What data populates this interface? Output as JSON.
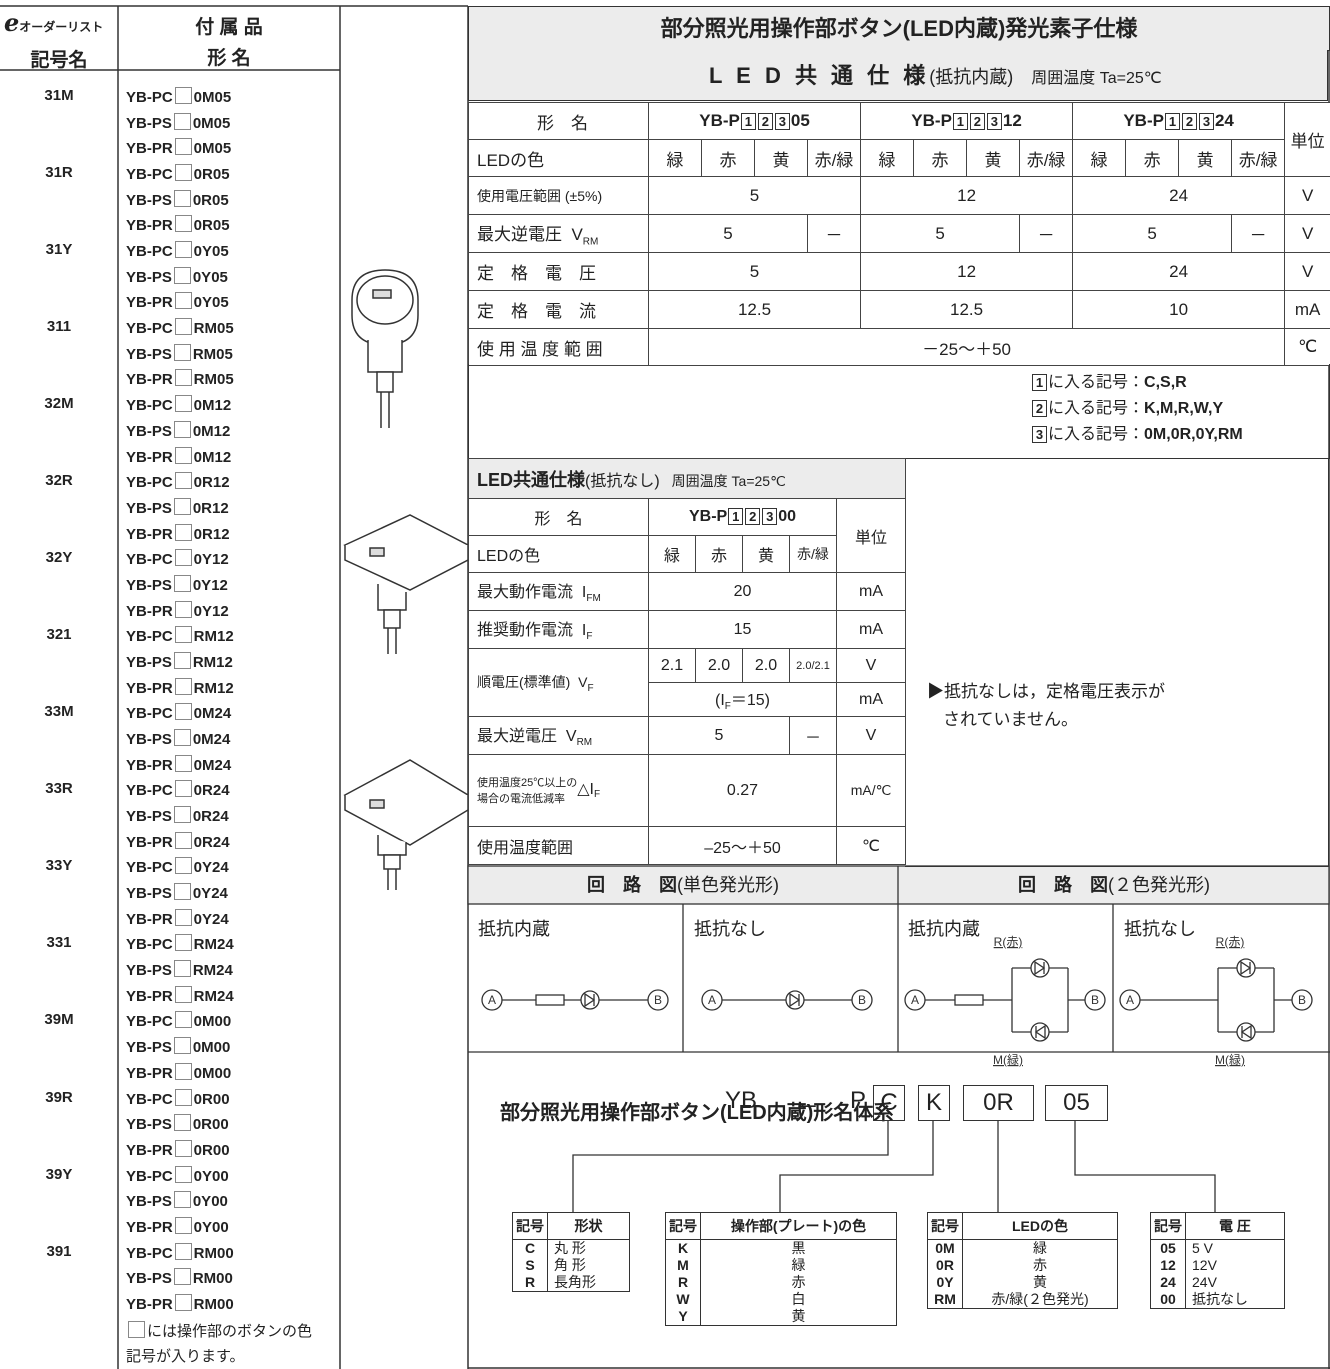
{
  "order_list": {
    "header": {
      "logo": "e",
      "code_title": "オーダーリスト",
      "code_name": "記号名",
      "accessory": "付 属 品",
      "form_name": "形 名"
    },
    "groups": [
      {
        "code": "31M",
        "forms": [
          {
            "prefix": "YB-PC",
            "suffix": "0M05"
          },
          {
            "prefix": "YB-PS",
            "suffix": "0M05"
          },
          {
            "prefix": "YB-PR",
            "suffix": "0M05"
          }
        ]
      },
      {
        "code": "31R",
        "forms": [
          {
            "prefix": "YB-PC",
            "suffix": "0R05"
          },
          {
            "prefix": "YB-PS",
            "suffix": "0R05"
          },
          {
            "prefix": "YB-PR",
            "suffix": "0R05"
          }
        ]
      },
      {
        "code": "31Y",
        "forms": [
          {
            "prefix": "YB-PC",
            "suffix": "0Y05"
          },
          {
            "prefix": "YB-PS",
            "suffix": "0Y05"
          },
          {
            "prefix": "YB-PR",
            "suffix": "0Y05"
          }
        ]
      },
      {
        "code": "311",
        "forms": [
          {
            "prefix": "YB-PC",
            "suffix": "RM05"
          },
          {
            "prefix": "YB-PS",
            "suffix": "RM05"
          },
          {
            "prefix": "YB-PR",
            "suffix": "RM05"
          }
        ]
      },
      {
        "code": "32M",
        "forms": [
          {
            "prefix": "YB-PC",
            "suffix": "0M12"
          },
          {
            "prefix": "YB-PS",
            "suffix": "0M12"
          },
          {
            "prefix": "YB-PR",
            "suffix": "0M12"
          }
        ]
      },
      {
        "code": "32R",
        "forms": [
          {
            "prefix": "YB-PC",
            "suffix": "0R12"
          },
          {
            "prefix": "YB-PS",
            "suffix": "0R12"
          },
          {
            "prefix": "YB-PR",
            "suffix": "0R12"
          }
        ]
      },
      {
        "code": "32Y",
        "forms": [
          {
            "prefix": "YB-PC",
            "suffix": "0Y12"
          },
          {
            "prefix": "YB-PS",
            "suffix": "0Y12"
          },
          {
            "prefix": "YB-PR",
            "suffix": "0Y12"
          }
        ]
      },
      {
        "code": "321",
        "forms": [
          {
            "prefix": "YB-PC",
            "suffix": "RM12"
          },
          {
            "prefix": "YB-PS",
            "suffix": "RM12"
          },
          {
            "prefix": "YB-PR",
            "suffix": "RM12"
          }
        ]
      },
      {
        "code": "33M",
        "forms": [
          {
            "prefix": "YB-PC",
            "suffix": "0M24"
          },
          {
            "prefix": "YB-PS",
            "suffix": "0M24"
          },
          {
            "prefix": "YB-PR",
            "suffix": "0M24"
          }
        ]
      },
      {
        "code": "33R",
        "forms": [
          {
            "prefix": "YB-PC",
            "suffix": "0R24"
          },
          {
            "prefix": "YB-PS",
            "suffix": "0R24"
          },
          {
            "prefix": "YB-PR",
            "suffix": "0R24"
          }
        ]
      },
      {
        "code": "33Y",
        "forms": [
          {
            "prefix": "YB-PC",
            "suffix": "0Y24"
          },
          {
            "prefix": "YB-PS",
            "suffix": "0Y24"
          },
          {
            "prefix": "YB-PR",
            "suffix": "0Y24"
          }
        ]
      },
      {
        "code": "331",
        "forms": [
          {
            "prefix": "YB-PC",
            "suffix": "RM24"
          },
          {
            "prefix": "YB-PS",
            "suffix": "RM24"
          },
          {
            "prefix": "YB-PR",
            "suffix": "RM24"
          }
        ]
      },
      {
        "code": "39M",
        "forms": [
          {
            "prefix": "YB-PC",
            "suffix": "0M00"
          },
          {
            "prefix": "YB-PS",
            "suffix": "0M00"
          },
          {
            "prefix": "YB-PR",
            "suffix": "0M00"
          }
        ]
      },
      {
        "code": "39R",
        "forms": [
          {
            "prefix": "YB-PC",
            "suffix": "0R00"
          },
          {
            "prefix": "YB-PS",
            "suffix": "0R00"
          },
          {
            "prefix": "YB-PR",
            "suffix": "0R00"
          }
        ]
      },
      {
        "code": "39Y",
        "forms": [
          {
            "prefix": "YB-PC",
            "suffix": "0Y00"
          },
          {
            "prefix": "YB-PS",
            "suffix": "0Y00"
          },
          {
            "prefix": "YB-PR",
            "suffix": "0Y00"
          }
        ]
      },
      {
        "code": "391",
        "forms": [
          {
            "prefix": "YB-PC",
            "suffix": "RM00"
          },
          {
            "prefix": "YB-PS",
            "suffix": "RM00"
          },
          {
            "prefix": "YB-PR",
            "suffix": "RM00"
          }
        ]
      }
    ],
    "note_1": "には操作部のボタンの色",
    "note_2": "記号が入ります。"
  },
  "spec": {
    "title": "部分照光用操作部ボタン(LED内蔵)発光素子仕様",
    "common_title": "L E D 共 通 仕 様",
    "common_sub": "(抵抗内蔵)",
    "ambient": "周囲温度 Ta=25℃",
    "model_label": "形　名",
    "models": [
      {
        "prefix": "YB-P",
        "boxes": [
          "1",
          "2",
          "3"
        ],
        "suffix": "05"
      },
      {
        "prefix": "YB-P",
        "boxes": [
          "1",
          "2",
          "3"
        ],
        "suffix": "12"
      },
      {
        "prefix": "YB-P",
        "boxes": [
          "1",
          "2",
          "3"
        ],
        "suffix": "24"
      }
    ],
    "unit_label": "単位",
    "color_label": "LEDの色",
    "colors": [
      "緑",
      "赤",
      "黄",
      "赤/緑"
    ],
    "voltage_range": {
      "label": "使用電圧範囲 (±5%)",
      "values": [
        "5",
        "12",
        "24"
      ],
      "unit": "V"
    },
    "reverse_voltage": {
      "label": "最大逆電圧",
      "symbol": "V",
      "sub": "RM",
      "values": [
        "5",
        "－",
        "5",
        "－",
        "5",
        "－"
      ],
      "unit": "V"
    },
    "rated_voltage": {
      "label": "定　格　電　圧",
      "values": [
        "5",
        "12",
        "24"
      ],
      "unit": "V"
    },
    "rated_current": {
      "label": "定　格　電　流",
      "values": [
        "12.5",
        "12.5",
        "10"
      ],
      "unit": "mA"
    },
    "temp_range": {
      "label": "使 用 温 度 範 囲",
      "value": "－25～＋50",
      "unit": "℃"
    },
    "notes": [
      {
        "box": "1",
        "text": "に入る記号：",
        "codes": "C,S,R"
      },
      {
        "box": "2",
        "text": "に入る記号：",
        "codes": "K,M,R,W,Y"
      },
      {
        "box": "3",
        "text": "に入る記号：",
        "codes": "0M,0R,0Y,RM"
      }
    ]
  },
  "spec2": {
    "title": "LED共通仕様",
    "title_sub": "(抵抗なし)",
    "ambient": "周囲温度 Ta=25℃",
    "model_label": "形　名",
    "model": {
      "prefix": "YB-P",
      "boxes": [
        "1",
        "2",
        "3"
      ],
      "suffix": "00"
    },
    "unit_label": "単位",
    "color_label": "LEDの色",
    "colors": [
      "緑",
      "赤",
      "黄",
      "赤/緑"
    ],
    "max_current": {
      "label": "最大動作電流",
      "symbol": "I",
      "sub": "FM",
      "value": "20",
      "unit": "mA"
    },
    "rec_current": {
      "label": "推奨動作電流",
      "symbol": "I",
      "sub": "F",
      "value": "15",
      "unit": "mA"
    },
    "forward_voltage": {
      "label": "順電圧(標準値)",
      "symbol": "V",
      "sub": "F",
      "values": [
        "2.1",
        "2.0",
        "2.0",
        "2.0/2.1"
      ],
      "unit": "V",
      "cond_pre": "(I",
      "cond_sub": "F",
      "cond_post": "＝15)",
      "cond_unit": "mA"
    },
    "reverse_voltage": {
      "label": "最大逆電圧",
      "symbol": "V",
      "sub": "RM",
      "values": [
        "5",
        "－"
      ],
      "unit": "V"
    },
    "derating": {
      "label_1": "使用温度25℃以上の",
      "label_2": "場合の電流低減率",
      "symbol": "△I",
      "sub": "F",
      "value": "0.27",
      "unit": "mA/℃"
    },
    "temp_range": {
      "label": "使用温度範囲",
      "value": "–25～＋50",
      "unit": "℃"
    },
    "note_1": "▶抵抗なしは，定格電圧表示が",
    "note_2": "されていません。"
  },
  "circuit": {
    "single_title": "回　路　図",
    "single_sub": "(単色発光形)",
    "dual_title": "回　路　図",
    "dual_sub": "(２色発光形)",
    "labels": [
      "抵抗内蔵",
      "抵抗なし",
      "抵抗内蔵",
      "抵抗なし"
    ],
    "node_a": "A",
    "node_b": "B",
    "red": "R(赤)",
    "green": "M(緑)"
  },
  "naming": {
    "title": "部分照光用操作部ボタン(LED内蔵)形名体系",
    "parts": [
      "YB",
      "－",
      "P",
      "C",
      "K",
      "0R",
      "05"
    ],
    "tables": [
      {
        "headers": [
          "記号",
          "形状"
        ],
        "rows": [
          [
            "C",
            "丸 形"
          ],
          [
            "S",
            "角 形"
          ],
          [
            "R",
            "長角形"
          ]
        ]
      },
      {
        "headers": [
          "記号",
          "操作部(プレート)の色"
        ],
        "rows": [
          [
            "K",
            "黒"
          ],
          [
            "M",
            "緑"
          ],
          [
            "R",
            "赤"
          ],
          [
            "W",
            "白"
          ],
          [
            "Y",
            "黄"
          ]
        ]
      },
      {
        "headers": [
          "記号",
          "LEDの色"
        ],
        "rows": [
          [
            "0M",
            "緑"
          ],
          [
            "0R",
            "赤"
          ],
          [
            "0Y",
            "黄"
          ],
          [
            "RM",
            "赤/緑(２色発光)"
          ]
        ]
      },
      {
        "headers": [
          "記号",
          "電 圧"
        ],
        "rows": [
          [
            "05",
            "5 V"
          ],
          [
            "12",
            "12V"
          ],
          [
            "24",
            "24V"
          ],
          [
            "00",
            "抵抗なし"
          ]
        ]
      }
    ]
  }
}
